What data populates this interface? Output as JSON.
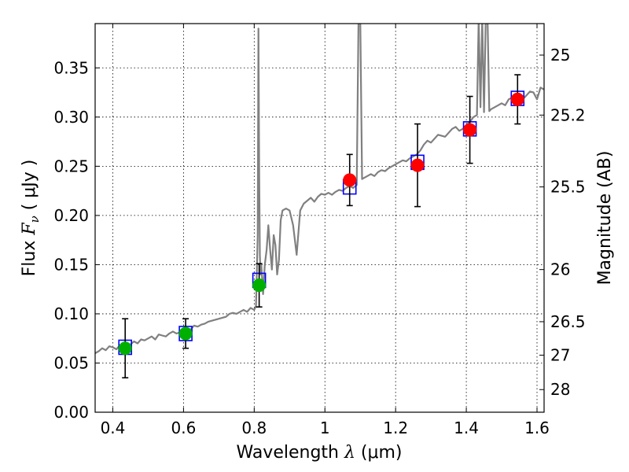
{
  "chart_data": {
    "type": "scatter",
    "x_axis": {
      "label_prefix": "Wavelength  ",
      "label_symbol": "λ",
      "label_suffix": " (μm)",
      "range": [
        0.35,
        1.62
      ],
      "ticks": [
        0.4,
        0.6,
        0.8,
        1.0,
        1.2,
        1.4,
        1.6
      ],
      "tick_labels": [
        "0.4",
        "0.6",
        "0.8",
        "1",
        "1.2",
        "1.4",
        "1.6"
      ]
    },
    "y_axis": {
      "label_prefix": "Flux  ",
      "label_symbol": "F",
      "label_sub": "ν",
      "label_suffix": "  ( μJy )",
      "range": [
        0.0,
        0.395
      ],
      "ticks": [
        0.0,
        0.05,
        0.1,
        0.15,
        0.2,
        0.25,
        0.3,
        0.35
      ],
      "tick_labels": [
        "0.00",
        "0.05",
        "0.10",
        "0.15",
        "0.20",
        "0.25",
        "0.30",
        "0.35"
      ]
    },
    "y2_axis": {
      "label": "Magnitude (AB)",
      "tick_labels": [
        "25",
        "25.2",
        "25.5",
        "26",
        "26.5",
        "27",
        "28"
      ],
      "tick_flux_positions": [
        0.363,
        0.302,
        0.229,
        0.145,
        0.092,
        0.058,
        0.023
      ]
    },
    "grid": true,
    "colors": {
      "spectrum": "#808080",
      "model_box": "#0000ff",
      "optical_points": "#00b000",
      "nir_points": "#ff0000",
      "errorbar": "#000000"
    },
    "spectrum": {
      "x": [
        0.35,
        0.36,
        0.37,
        0.38,
        0.39,
        0.4,
        0.41,
        0.42,
        0.43,
        0.44,
        0.45,
        0.46,
        0.47,
        0.48,
        0.49,
        0.5,
        0.51,
        0.52,
        0.53,
        0.54,
        0.55,
        0.56,
        0.57,
        0.58,
        0.59,
        0.6,
        0.61,
        0.62,
        0.63,
        0.64,
        0.65,
        0.66,
        0.67,
        0.68,
        0.69,
        0.7,
        0.71,
        0.72,
        0.73,
        0.74,
        0.75,
        0.76,
        0.77,
        0.78,
        0.79,
        0.8,
        0.805,
        0.81,
        0.812,
        0.814,
        0.816,
        0.818,
        0.82,
        0.825,
        0.83,
        0.835,
        0.84,
        0.845,
        0.85,
        0.855,
        0.86,
        0.865,
        0.87,
        0.875,
        0.88,
        0.89,
        0.9,
        0.91,
        0.92,
        0.93,
        0.94,
        0.95,
        0.96,
        0.97,
        0.98,
        0.99,
        1.0,
        1.01,
        1.02,
        1.03,
        1.04,
        1.05,
        1.06,
        1.07,
        1.08,
        1.09,
        1.095,
        1.1,
        1.105,
        1.11,
        1.12,
        1.13,
        1.14,
        1.15,
        1.16,
        1.17,
        1.18,
        1.19,
        1.2,
        1.21,
        1.22,
        1.23,
        1.24,
        1.25,
        1.26,
        1.27,
        1.28,
        1.29,
        1.3,
        1.31,
        1.32,
        1.33,
        1.34,
        1.35,
        1.36,
        1.37,
        1.38,
        1.39,
        1.4,
        1.41,
        1.42,
        1.43,
        1.435,
        1.44,
        1.445,
        1.45,
        1.455,
        1.46,
        1.465,
        1.47,
        1.48,
        1.49,
        1.5,
        1.51,
        1.52,
        1.53,
        1.54,
        1.55,
        1.56,
        1.57,
        1.58,
        1.59,
        1.6,
        1.61,
        1.62
      ],
      "y": [
        0.06,
        0.062,
        0.065,
        0.063,
        0.067,
        0.066,
        0.064,
        0.068,
        0.07,
        0.066,
        0.069,
        0.072,
        0.07,
        0.074,
        0.073,
        0.075,
        0.077,
        0.074,
        0.079,
        0.078,
        0.077,
        0.08,
        0.082,
        0.08,
        0.081,
        0.083,
        0.085,
        0.084,
        0.088,
        0.087,
        0.089,
        0.09,
        0.092,
        0.093,
        0.094,
        0.095,
        0.096,
        0.097,
        0.1,
        0.101,
        0.1,
        0.102,
        0.104,
        0.102,
        0.106,
        0.104,
        0.108,
        0.18,
        0.39,
        0.25,
        0.16,
        0.14,
        0.15,
        0.12,
        0.15,
        0.165,
        0.19,
        0.165,
        0.145,
        0.18,
        0.17,
        0.14,
        0.155,
        0.195,
        0.205,
        0.207,
        0.205,
        0.19,
        0.16,
        0.205,
        0.212,
        0.215,
        0.218,
        0.214,
        0.219,
        0.222,
        0.221,
        0.223,
        0.221,
        0.224,
        0.226,
        0.225,
        0.228,
        0.23,
        0.228,
        0.231,
        0.4,
        0.4,
        0.237,
        0.238,
        0.24,
        0.242,
        0.24,
        0.244,
        0.246,
        0.245,
        0.248,
        0.25,
        0.252,
        0.254,
        0.256,
        0.255,
        0.258,
        0.26,
        0.262,
        0.266,
        0.272,
        0.276,
        0.274,
        0.278,
        0.282,
        0.281,
        0.28,
        0.284,
        0.288,
        0.29,
        0.286,
        0.288,
        0.292,
        0.295,
        0.3,
        0.302,
        0.4,
        0.31,
        0.4,
        0.305,
        0.4,
        0.4,
        0.306,
        0.308,
        0.31,
        0.312,
        0.314,
        0.312,
        0.318,
        0.32,
        0.322,
        0.32,
        0.318,
        0.322,
        0.326,
        0.325,
        0.318,
        0.33,
        0.328
      ]
    },
    "model_boxes": [
      {
        "x": 0.435,
        "y": 0.066
      },
      {
        "x": 0.606,
        "y": 0.08
      },
      {
        "x": 0.814,
        "y": 0.134
      },
      {
        "x": 1.07,
        "y": 0.229
      },
      {
        "x": 1.262,
        "y": 0.254
      },
      {
        "x": 1.41,
        "y": 0.288
      },
      {
        "x": 1.545,
        "y": 0.319
      }
    ],
    "optical_points": [
      {
        "x": 0.435,
        "y": 0.065,
        "yerr": 0.03
      },
      {
        "x": 0.606,
        "y": 0.08,
        "yerr": 0.015
      },
      {
        "x": 0.814,
        "y": 0.129,
        "yerr": 0.022
      }
    ],
    "nir_points": [
      {
        "x": 1.07,
        "y": 0.236,
        "yerr": 0.026
      },
      {
        "x": 1.262,
        "y": 0.251,
        "yerr": 0.042
      },
      {
        "x": 1.41,
        "y": 0.287,
        "yerr": 0.034
      },
      {
        "x": 1.545,
        "y": 0.318,
        "yerr": 0.025
      }
    ]
  }
}
